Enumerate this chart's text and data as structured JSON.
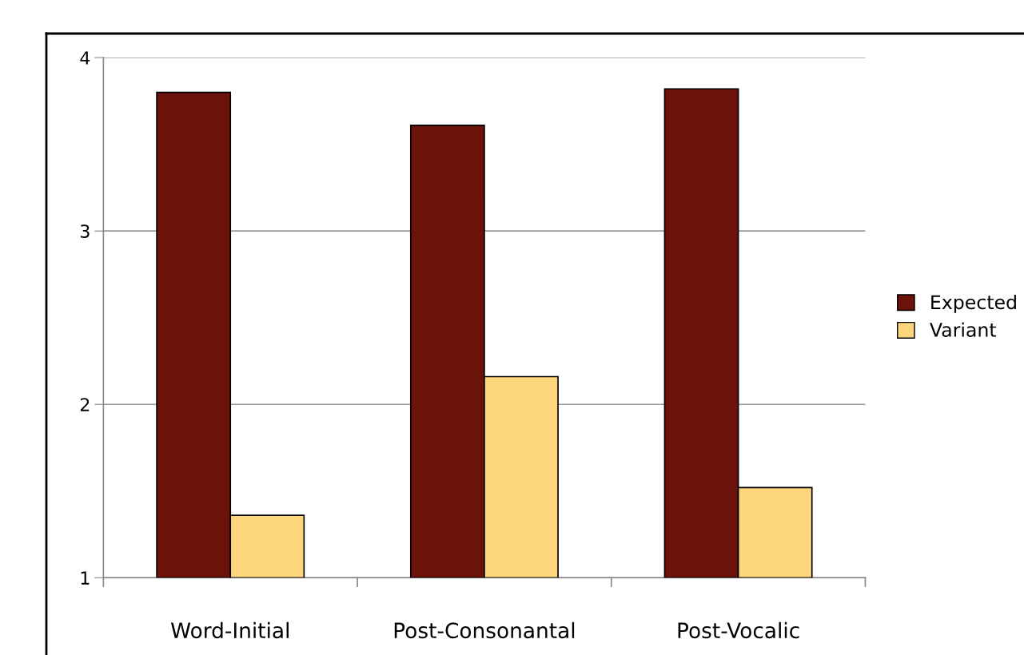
{
  "chart_data": {
    "type": "bar",
    "categories": [
      "Word-Initial",
      "Post-Consonantal",
      "Post-Vocalic"
    ],
    "series": [
      {
        "name": "Expected",
        "color": "#6b130a",
        "values": [
          3.8,
          3.61,
          3.82
        ]
      },
      {
        "name": "Variant",
        "color": "#fdd57c",
        "values": [
          1.36,
          2.16,
          1.52
        ]
      }
    ],
    "ylim": [
      1,
      4
    ],
    "yticks": [
      1,
      2,
      3,
      4
    ],
    "grid": "y",
    "legend": "right"
  }
}
